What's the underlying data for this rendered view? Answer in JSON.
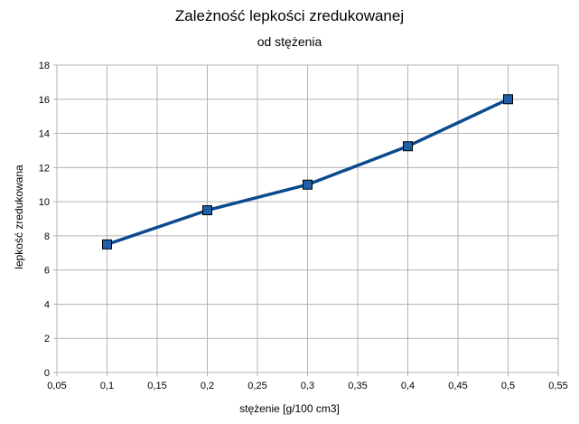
{
  "chart_data": {
    "type": "line",
    "title": "Zależność lepkości zredukowanej",
    "subtitle": "od stężenia",
    "xlabel": "stężenie [g/100 cm3]",
    "ylabel": "lepkość zredukowana",
    "xlim": [
      0.05,
      0.55
    ],
    "ylim": [
      0,
      18
    ],
    "x_ticks": [
      "0,05",
      "0,1",
      "0,15",
      "0,2",
      "0,25",
      "0,3",
      "0,35",
      "0,4",
      "0,45",
      "0,5",
      "0,55"
    ],
    "y_ticks": [
      "0",
      "2",
      "4",
      "6",
      "8",
      "10",
      "12",
      "14",
      "16",
      "18"
    ],
    "grid": true,
    "legend": "none",
    "series": [
      {
        "color": "#0b4a8c",
        "marker": "square",
        "points": [
          {
            "x": 0.1,
            "y": 7.5
          },
          {
            "x": 0.2,
            "y": 9.5
          },
          {
            "x": 0.3,
            "y": 11.0
          },
          {
            "x": 0.4,
            "y": 13.25
          },
          {
            "x": 0.5,
            "y": 16.0
          }
        ]
      }
    ]
  }
}
